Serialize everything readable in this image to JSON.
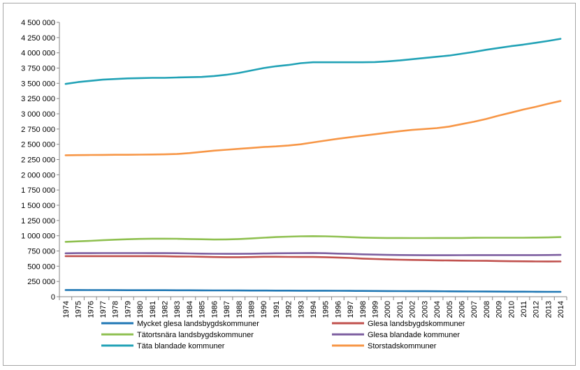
{
  "chart_data": {
    "type": "line",
    "title": "",
    "xlabel": "",
    "ylabel": "",
    "ylim": [
      0,
      4500000
    ],
    "y_ticks": [
      0,
      250000,
      500000,
      750000,
      1000000,
      1250000,
      1500000,
      1750000,
      2000000,
      2250000,
      2500000,
      2750000,
      3000000,
      3250000,
      3500000,
      3750000,
      4000000,
      4250000,
      4500000
    ],
    "y_tick_labels": [
      "0",
      "250 000",
      "500 000",
      "750 000",
      "1 000 000",
      "1 250 000",
      "1 500 000",
      "1 750 000",
      "2 000 000",
      "2 250 000",
      "2 500 000",
      "2 750 000",
      "3 000 000",
      "3 250 000",
      "3 500 000",
      "3 750 000",
      "4 000 000",
      "4 250 000",
      "4 500 000"
    ],
    "grid": false,
    "legend_position": "bottom",
    "x": [
      "1974",
      "1975",
      "1976",
      "1977",
      "1978",
      "1979",
      "1980",
      "1981",
      "1982",
      "1983",
      "1984",
      "1985",
      "1986",
      "1987",
      "1988",
      "1989",
      "1990",
      "1991",
      "1992",
      "1993",
      "1994",
      "1995",
      "1996",
      "1997",
      "1998",
      "1999",
      "2000",
      "2001",
      "2002",
      "2003",
      "2004",
      "2005",
      "2006",
      "2007",
      "2008",
      "2009",
      "2010",
      "2011",
      "2012",
      "2013",
      "2014"
    ],
    "series": [
      {
        "name": "Mycket glesa landsbygdskommuner",
        "color": "#1f77b4",
        "values": [
          110000,
          110000,
          109000,
          109000,
          108000,
          107000,
          107000,
          106000,
          106000,
          105000,
          105000,
          104000,
          103000,
          103000,
          102000,
          101000,
          101000,
          100000,
          100000,
          99000,
          99000,
          98000,
          97000,
          96000,
          95000,
          94000,
          93000,
          92000,
          91000,
          90000,
          89000,
          88000,
          87000,
          86000,
          85000,
          84000,
          83000,
          82000,
          81000,
          80000,
          80000
        ]
      },
      {
        "name": "Glesa landsbygdskommuner",
        "color": "#c0504d",
        "values": [
          665000,
          665000,
          665000,
          665000,
          665000,
          665000,
          665000,
          665000,
          663000,
          660000,
          658000,
          655000,
          650000,
          648000,
          648000,
          650000,
          655000,
          655000,
          653000,
          652000,
          652000,
          648000,
          642000,
          635000,
          625000,
          618000,
          612000,
          607000,
          603000,
          600000,
          597000,
          594000,
          592000,
          590000,
          588000,
          585000,
          582000,
          580000,
          578000,
          577000,
          578000
        ]
      },
      {
        "name": "Tätortsnära landsbygdskommuner",
        "color": "#8fc050",
        "values": [
          900000,
          908000,
          916000,
          926000,
          936000,
          942000,
          948000,
          952000,
          952000,
          950000,
          946000,
          942000,
          938000,
          940000,
          946000,
          955000,
          968000,
          978000,
          985000,
          990000,
          993000,
          990000,
          985000,
          977000,
          970000,
          965000,
          963000,
          963000,
          962000,
          962000,
          963000,
          963000,
          963000,
          966000,
          968000,
          968000,
          968000,
          968000,
          970000,
          972000,
          978000
        ]
      },
      {
        "name": "Glesa blandade kommuner",
        "color": "#7d5fa0",
        "values": [
          712000,
          714000,
          715000,
          716000,
          716000,
          716000,
          716000,
          715000,
          714000,
          713000,
          710000,
          707000,
          704000,
          703000,
          703000,
          705000,
          709000,
          712000,
          713000,
          715000,
          717000,
          713000,
          707000,
          702000,
          695000,
          690000,
          686000,
          684000,
          682000,
          680000,
          680000,
          680000,
          681000,
          682000,
          682000,
          682000,
          682000,
          682000,
          683000,
          684000,
          686000
        ]
      },
      {
        "name": "Täta blandade kommuner",
        "color": "#21a2b6",
        "values": [
          3490000,
          3520000,
          3540000,
          3560000,
          3570000,
          3580000,
          3585000,
          3590000,
          3590000,
          3595000,
          3600000,
          3605000,
          3620000,
          3640000,
          3670000,
          3710000,
          3750000,
          3780000,
          3800000,
          3830000,
          3845000,
          3845000,
          3845000,
          3845000,
          3845000,
          3848000,
          3860000,
          3875000,
          3895000,
          3915000,
          3935000,
          3955000,
          3985000,
          4015000,
          4050000,
          4080000,
          4110000,
          4135000,
          4165000,
          4195000,
          4230000
        ]
      },
      {
        "name": "Storstadskommuner",
        "color": "#f79646",
        "values": [
          2320000,
          2322000,
          2324000,
          2326000,
          2328000,
          2328000,
          2330000,
          2332000,
          2335000,
          2340000,
          2355000,
          2375000,
          2395000,
          2410000,
          2425000,
          2440000,
          2455000,
          2465000,
          2480000,
          2500000,
          2530000,
          2560000,
          2590000,
          2615000,
          2640000,
          2665000,
          2690000,
          2715000,
          2735000,
          2750000,
          2765000,
          2790000,
          2830000,
          2870000,
          2915000,
          2970000,
          3020000,
          3070000,
          3115000,
          3165000,
          3210000
        ]
      }
    ]
  }
}
